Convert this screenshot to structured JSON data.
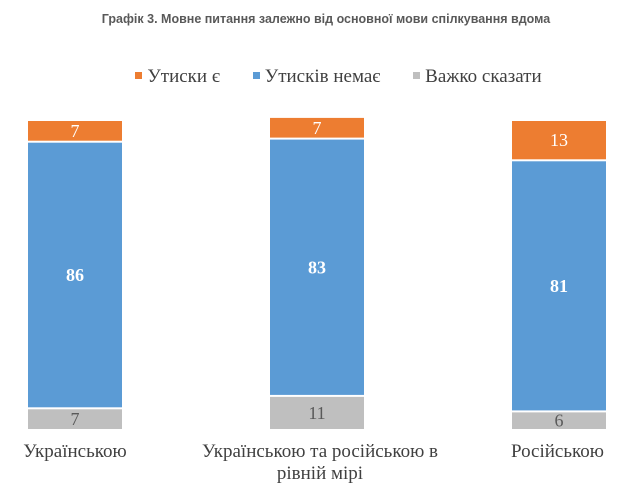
{
  "chart_data": {
    "type": "bar",
    "stacked": true,
    "title": "Графік 3. Мовне питання залежно від основної мови спілкування вдома",
    "categories": [
      "Українською",
      "Українською та російською в рівній мірі",
      "Російською"
    ],
    "series": [
      {
        "name": "Утиски є",
        "color": "#ED7D31",
        "values": [
          7,
          7,
          13
        ]
      },
      {
        "name": "Утисків немає",
        "color": "#5B9BD5",
        "values": [
          86,
          83,
          81
        ]
      },
      {
        "name": "Важко сказати",
        "color": "#BFBFBF",
        "values": [
          7,
          11,
          6
        ]
      }
    ],
    "legend_position": "top",
    "grid": false,
    "axes_visible": false
  }
}
